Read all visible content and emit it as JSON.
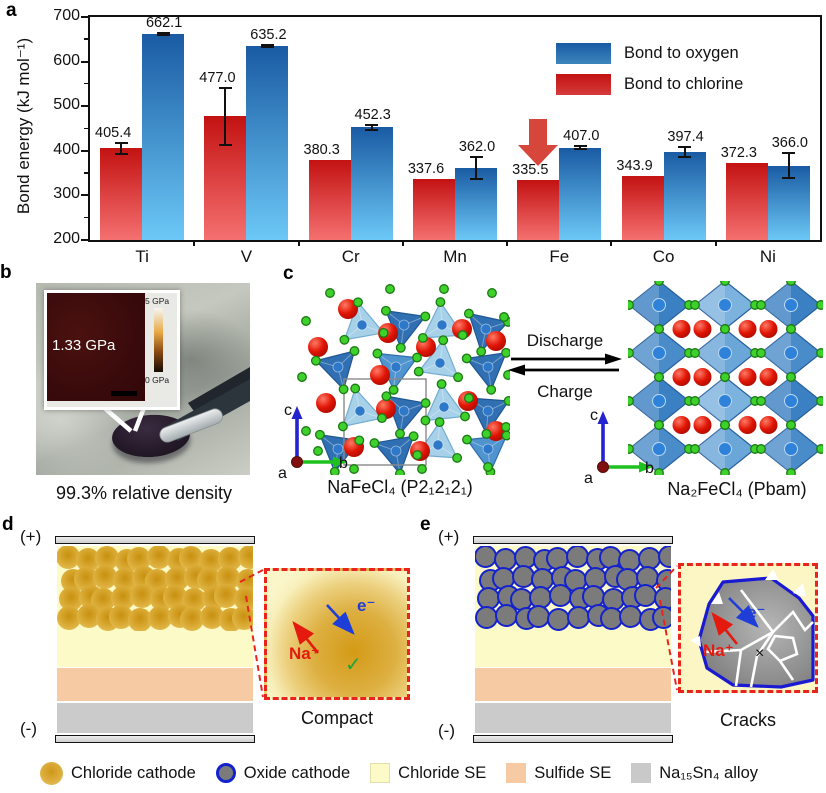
{
  "panels": {
    "a": "a",
    "b": "b",
    "c": "c",
    "d": "d",
    "e": "e"
  },
  "chart_data": {
    "type": "bar",
    "title": "",
    "ylabel": "Bond energy (kJ mol⁻¹)",
    "ylim": [
      200,
      700
    ],
    "yticks": [
      200,
      300,
      400,
      500,
      600,
      700
    ],
    "categories": [
      "Ti",
      "V",
      "Cr",
      "Mn",
      "Fe",
      "Co",
      "Ni"
    ],
    "series": [
      {
        "name": "Bond to chlorine",
        "color_top": "#c31212",
        "color_bottom": "#f57070",
        "legend_color": "#d53b3b",
        "values": [
          405.4,
          477.0,
          380.3,
          337.6,
          335.5,
          343.9,
          372.3
        ],
        "errors": [
          12,
          63,
          0,
          0,
          0,
          0,
          0
        ]
      },
      {
        "name": "Bond to oxygen",
        "color_top": "#1a5ba3",
        "color_bottom": "#6cc8f6",
        "legend_color": "#3c86bc",
        "values": [
          662.1,
          635.2,
          452.3,
          362.0,
          407.0,
          397.4,
          366.0
        ],
        "errors": [
          3,
          3,
          5,
          25,
          4,
          12,
          28
        ]
      }
    ],
    "legend_order": [
      "Bond to oxygen",
      "Bond to chlorine"
    ],
    "grid": false,
    "legend_position": "upper right",
    "annotation": {
      "type": "down-arrow",
      "category": "Fe",
      "series": "Bond to chlorine",
      "color": "#d7463b"
    }
  },
  "panel_b": {
    "modulus": "1.33 GPa",
    "scale_max": "5 GPa",
    "scale_min": "0 GPa",
    "caption": "99.3% relative density"
  },
  "panel_c": {
    "discharge": "Discharge",
    "charge": "Charge",
    "left_caption": "NaFeCl₄ (P2₁2₁2₁)",
    "right_caption": "Na₂FeCl₄ (Pbam)",
    "axis": {
      "a": "a",
      "b": "b",
      "c": "c"
    }
  },
  "panel_d": {
    "positive": "(+)",
    "negative": "(-)",
    "na": "Na⁺",
    "electron": "e⁻",
    "mark": "✓",
    "caption": "Compact"
  },
  "panel_e": {
    "positive": "(+)",
    "negative": "(-)",
    "na": "Na⁺",
    "electron": "e⁻",
    "mark": "×",
    "caption": "Cracks"
  },
  "legend": {
    "items": [
      {
        "key": "chloride-cathode",
        "label": "Chloride cathode"
      },
      {
        "key": "oxide-cathode",
        "label": "Oxide cathode"
      },
      {
        "key": "chloride-se",
        "label": "Chloride SE"
      },
      {
        "key": "sulfide-se",
        "label": "Sulfide SE"
      },
      {
        "key": "na15sn4-alloy",
        "label": "Na₁₅Sn₄ alloy"
      }
    ]
  },
  "colors": {
    "chloride_se": "#fcfac6",
    "sulfide_se": "#f6cba4",
    "alloy": "#cbcbcb",
    "oxide_border": "#1322cc",
    "inset_border": "#e8241d",
    "na_red": "#e51a0e",
    "electron_blue": "#1f3ed8",
    "check_green": "#17a73a"
  }
}
